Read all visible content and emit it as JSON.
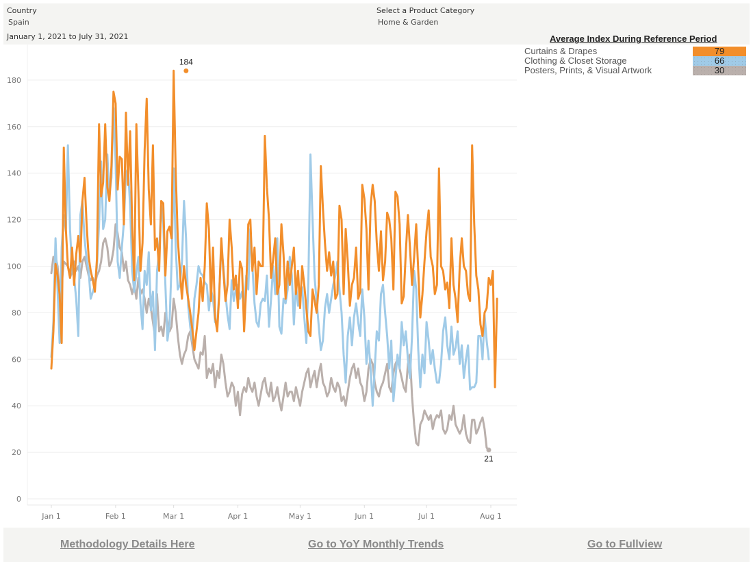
{
  "filters": {
    "country": {
      "label": "Country",
      "value": "Spain"
    },
    "category": {
      "label": "Select a Product Category",
      "value": "Home & Garden"
    },
    "date_range": "January 1, 2021 to July 31, 2021"
  },
  "legend": {
    "title": "Average Index During Reference Period",
    "items": [
      {
        "name": "Curtains & Drapes",
        "value": "79",
        "color": "#f28e2b"
      },
      {
        "name": "Clothing & Closet Storage",
        "value": "66",
        "color": "#a0cbe8"
      },
      {
        "name": "Posters, Prints, & Visual Artwork",
        "value": "30",
        "color": "#bab0ac"
      }
    ]
  },
  "footer": {
    "methodology": "Methodology Details Here",
    "yoy": "Go to YoY Monthly Trends",
    "fullview": "Go to Fullview"
  },
  "chart_data": {
    "type": "line",
    "title": "",
    "xlabel": "",
    "ylabel": "",
    "x_start": "2021-01-01",
    "x_end": "2021-07-31",
    "ylim": [
      0,
      190
    ],
    "yticks": [
      0,
      20,
      40,
      60,
      80,
      100,
      120,
      140,
      160,
      180
    ],
    "xticks": [
      "Jan 1",
      "Feb 1",
      "Mar 1",
      "Apr 1",
      "May 1",
      "Jun 1",
      "Jul 1",
      "Aug 1"
    ],
    "xtick_days": [
      0,
      31,
      59,
      90,
      120,
      151,
      181,
      212
    ],
    "grid": true,
    "annotations": [
      {
        "series": "Curtains & Drapes",
        "day": 65,
        "value": 184,
        "label": "184"
      },
      {
        "series": "Posters, Prints, & Visual Artwork",
        "day": 211,
        "value": 21,
        "label": "21"
      }
    ],
    "series": [
      {
        "name": "Curtains & Drapes",
        "color": "#f28e2b",
        "values": [
          56,
          72,
          101,
          96,
          88,
          67,
          151,
          116,
          100,
          95,
          108,
          92,
          105,
          113,
          102,
          128,
          138,
          118,
          104,
          98,
          94,
          89,
          103,
          161,
          130,
          136,
          161,
          134,
          128,
          143,
          175,
          170,
          133,
          147,
          146,
          118,
          166,
          135,
          158,
          117,
          94,
          161,
          132,
          98,
          110,
          150,
          172,
          133,
          118,
          152,
          107,
          112,
          98,
          128,
          127,
          96,
          115,
          117,
          112,
          184,
          140,
          112,
          98,
          86,
          100,
          92,
          86,
          80,
          73,
          64,
          72,
          80,
          95,
          85,
          100,
          127,
          116,
          85,
          108,
          78,
          72,
          88,
          112,
          98,
          85,
          92,
          120,
          108,
          90,
          96,
          82,
          102,
          99,
          72,
          91,
          118,
          120,
          98,
          108,
          88,
          102,
          100,
          100,
          156,
          134,
          120,
          95,
          103,
          112,
          88,
          92,
          118,
          105,
          86,
          102,
          92,
          100,
          108,
          88,
          98,
          82,
          100,
          92,
          82,
          72,
          70,
          90,
          85,
          80,
          92,
          143,
          125,
          110,
          98,
          106,
          96,
          102,
          86,
          88,
          126,
          120,
          88,
          116,
          102,
          83,
          92,
          95,
          108,
          86,
          89,
          135,
          129,
          116,
          90,
          126,
          135,
          128,
          110,
          98,
          115,
          94,
          102,
          123,
          120,
          112,
          90,
          132,
          130,
          118,
          84,
          87,
          106,
          122,
          108,
          92,
          104,
          118,
          98,
          78,
          88,
          102,
          115,
          124,
          104,
          100,
          88,
          92,
          142,
          100,
          98,
          90,
          93,
          82,
          112,
          92,
          86,
          76,
          100,
          112,
          100,
          98,
          88,
          85,
          152,
          118,
          96,
          90,
          75,
          70,
          80,
          82,
          95,
          92,
          98,
          48,
          86
        ]
      },
      {
        "name": "Clothing & Closet Storage",
        "color": "#a0cbe8",
        "values": [
          61,
          76,
          112,
          90,
          67,
          108,
          122,
          115,
          152,
          116,
          98,
          95,
          86,
          70,
          122,
          128,
          112,
          103,
          98,
          86,
          89,
          92,
          100,
          118,
          145,
          116,
          120,
          148,
          130,
          138,
          168,
          145,
          102,
          95,
          108,
          119,
          140,
          142,
          126,
          98,
          89,
          97,
          104,
          84,
          73,
          98,
          92,
          106,
          81,
          89,
          64,
          98,
          106,
          126,
          118,
          92,
          68,
          75,
          101,
          142,
          108,
          90,
          92,
          102,
          128,
          112,
          83,
          74,
          68,
          86,
          92,
          100,
          97,
          96,
          93,
          92,
          81,
          90,
          86,
          76,
          75,
          89,
          108,
          100,
          88,
          79,
          73,
          94,
          85,
          90,
          92,
          86,
          89,
          82,
          96,
          90,
          116,
          100,
          84,
          76,
          74,
          84,
          86,
          85,
          96,
          74,
          86,
          100,
          88,
          112,
          74,
          71,
          86,
          84,
          90,
          104,
          96,
          75,
          92,
          83,
          86,
          91,
          78,
          67,
          94,
          148,
          120,
          95,
          85,
          74,
          64,
          68,
          82,
          88,
          80,
          86,
          92,
          96,
          102,
          90,
          80,
          62,
          50,
          70,
          78,
          66,
          78,
          84,
          76,
          70,
          90,
          78,
          58,
          68,
          56,
          40,
          56,
          72,
          68,
          88,
          92,
          80,
          70,
          56,
          68,
          42,
          52,
          62,
          56,
          76,
          66,
          72,
          60,
          52,
          70,
          98,
          90,
          64,
          48,
          62,
          54,
          76,
          68,
          58,
          64,
          56,
          50,
          50,
          58,
          72,
          78,
          66,
          60,
          74,
          62,
          65,
          72,
          58,
          66,
          52,
          60,
          66,
          47,
          48,
          48,
          50,
          70,
          70,
          60,
          79,
          68,
          60
        ]
      },
      {
        "name": "Posters, Prints, & Visual Artwork",
        "color": "#bab0ac",
        "values": [
          97,
          104,
          104,
          100,
          90,
          92,
          102,
          101,
          100,
          95,
          98,
          102,
          98,
          100,
          95,
          102,
          104,
          100,
          96,
          94,
          95,
          92,
          96,
          98,
          102,
          110,
          112,
          108,
          100,
          102,
          107,
          118,
          114,
          108,
          106,
          98,
          102,
          94,
          92,
          88,
          92,
          86,
          95,
          88,
          90,
          86,
          80,
          86,
          82,
          76,
          70,
          88,
          72,
          74,
          70,
          80,
          76,
          72,
          74,
          86,
          80,
          70,
          62,
          58,
          62,
          64,
          70,
          72,
          66,
          60,
          58,
          56,
          63,
          62,
          70,
          52,
          56,
          54,
          58,
          48,
          55,
          52,
          62,
          58,
          50,
          44,
          46,
          50,
          48,
          40,
          46,
          36,
          45,
          48,
          46,
          52,
          48,
          46,
          50,
          44,
          40,
          45,
          50,
          52,
          46,
          44,
          50,
          42,
          44,
          48,
          42,
          38,
          44,
          50,
          44,
          46,
          46,
          42,
          48,
          44,
          40,
          46,
          50,
          54,
          56,
          48,
          52,
          55,
          48,
          54,
          58,
          50,
          48,
          44,
          46,
          52,
          48,
          46,
          50,
          48,
          42,
          44,
          40,
          46,
          52,
          56,
          58,
          52,
          56,
          50,
          48,
          42,
          46,
          56,
          60,
          58,
          50,
          46,
          44,
          48,
          50,
          54,
          58,
          48,
          46,
          54,
          58,
          60,
          56,
          52,
          48,
          46,
          58,
          62,
          44,
          32,
          24,
          23,
          32,
          34,
          38,
          36,
          34,
          36,
          30,
          34,
          36,
          35,
          38,
          30,
          28,
          30,
          36,
          34,
          40,
          32,
          30,
          28,
          30,
          36,
          28,
          25,
          24,
          34,
          34,
          28,
          30,
          33,
          35,
          30,
          22,
          21
        ]
      }
    ]
  }
}
